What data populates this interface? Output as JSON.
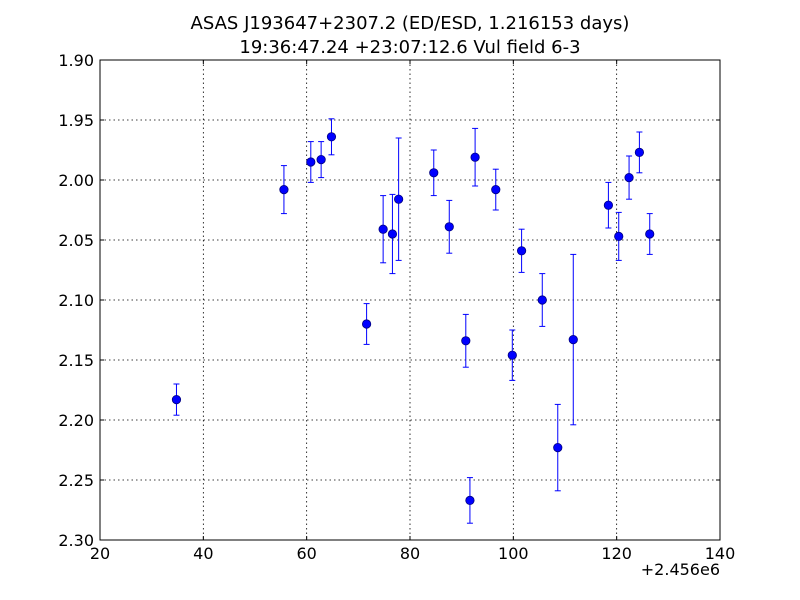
{
  "chart_data": {
    "type": "scatter",
    "title": "ASAS J193647+2307.2 (ED/ESD, 1.216153 days)",
    "subtitle": "19:36:47.24 +23:07:12.6 Vul field 6-3",
    "xlabel": "",
    "ylabel": "",
    "x_offset_label": "+2.456e6",
    "xlim": [
      20,
      140
    ],
    "ylim": [
      2.3,
      1.9
    ],
    "y_inverted": true,
    "grid": true,
    "x_ticks": [
      20,
      40,
      60,
      80,
      100,
      120,
      140
    ],
    "x_tick_labels": [
      "20",
      "40",
      "60",
      "80",
      "100",
      "120",
      "140"
    ],
    "y_ticks": [
      1.9,
      1.95,
      2.0,
      2.05,
      2.1,
      2.15,
      2.2,
      2.25,
      2.3
    ],
    "y_tick_labels": [
      "1.90",
      "1.95",
      "2.00",
      "2.05",
      "2.10",
      "2.15",
      "2.20",
      "2.25",
      "2.30"
    ],
    "colors": {
      "marker": "#0000ff",
      "marker_edge": "#000080",
      "errorbar": "#0000ff"
    },
    "points": [
      {
        "x": 34.8,
        "y": 2.183,
        "err": 0.013
      },
      {
        "x": 55.6,
        "y": 2.008,
        "err": 0.02
      },
      {
        "x": 60.8,
        "y": 1.985,
        "err": 0.017
      },
      {
        "x": 62.8,
        "y": 1.983,
        "err": 0.015
      },
      {
        "x": 64.8,
        "y": 1.964,
        "err": 0.015
      },
      {
        "x": 71.6,
        "y": 2.12,
        "err": 0.017
      },
      {
        "x": 74.8,
        "y": 2.041,
        "err": 0.028
      },
      {
        "x": 76.6,
        "y": 2.045,
        "err": 0.033
      },
      {
        "x": 77.8,
        "y": 2.016,
        "err": 0.051
      },
      {
        "x": 84.6,
        "y": 1.994,
        "err": 0.019
      },
      {
        "x": 87.6,
        "y": 2.039,
        "err": 0.022
      },
      {
        "x": 90.8,
        "y": 2.134,
        "err": 0.022
      },
      {
        "x": 91.6,
        "y": 2.267,
        "err": 0.019
      },
      {
        "x": 92.6,
        "y": 1.981,
        "err": 0.024
      },
      {
        "x": 96.6,
        "y": 2.008,
        "err": 0.017
      },
      {
        "x": 99.8,
        "y": 2.146,
        "err": 0.021
      },
      {
        "x": 101.6,
        "y": 2.059,
        "err": 0.018
      },
      {
        "x": 105.6,
        "y": 2.1,
        "err": 0.022
      },
      {
        "x": 108.6,
        "y": 2.223,
        "err": 0.036
      },
      {
        "x": 111.6,
        "y": 2.133,
        "err": 0.071
      },
      {
        "x": 118.4,
        "y": 2.021,
        "err": 0.019
      },
      {
        "x": 120.4,
        "y": 2.047,
        "err": 0.02
      },
      {
        "x": 122.4,
        "y": 1.998,
        "err": 0.018
      },
      {
        "x": 124.4,
        "y": 1.977,
        "err": 0.017
      },
      {
        "x": 126.4,
        "y": 2.045,
        "err": 0.017
      }
    ]
  }
}
